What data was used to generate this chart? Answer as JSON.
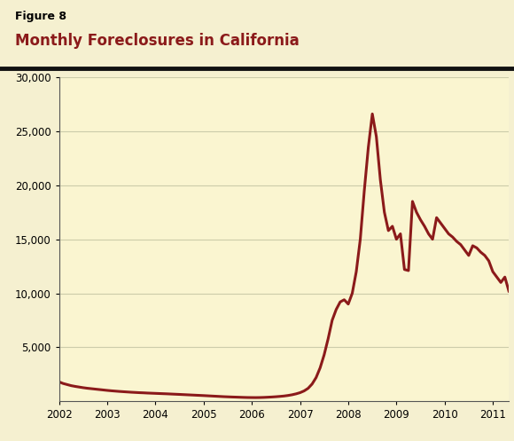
{
  "figure_label": "Figure 8",
  "title": "Monthly Foreclosures in California",
  "title_color": "#8B1A1A",
  "figure_label_color": "#000000",
  "outer_bg": "#F5F0D0",
  "plot_bg": "#FAF5D0",
  "line_color": "#8B1A1A",
  "line_width": 2.2,
  "ylim": [
    0,
    30000
  ],
  "yticks": [
    5000,
    10000,
    15000,
    20000,
    25000,
    30000
  ],
  "grid_color": "#CCCCAA",
  "separator_color": "#111111",
  "x_labels": [
    "2002",
    "2003",
    "2004",
    "2005",
    "2006",
    "2007",
    "2008",
    "2009",
    "2010",
    "2011"
  ],
  "data": [
    1800,
    1650,
    1550,
    1450,
    1380,
    1320,
    1260,
    1210,
    1170,
    1130,
    1090,
    1050,
    1010,
    975,
    945,
    915,
    890,
    865,
    840,
    820,
    800,
    785,
    765,
    750,
    735,
    720,
    705,
    690,
    672,
    655,
    638,
    620,
    602,
    584,
    566,
    548,
    530,
    510,
    490,
    470,
    450,
    430,
    415,
    400,
    388,
    375,
    362,
    352,
    348,
    345,
    350,
    362,
    380,
    400,
    425,
    455,
    490,
    540,
    605,
    690,
    800,
    960,
    1200,
    1600,
    2200,
    3100,
    4300,
    5800,
    7500,
    8500,
    9200,
    9400,
    9000,
    10000,
    12000,
    15000,
    19500,
    23500,
    26600,
    24500,
    20500,
    17500,
    15800,
    16200,
    15000,
    15500,
    12200,
    12100,
    18500,
    17500,
    16800,
    16200,
    15500,
    15000,
    17000,
    16500,
    16000,
    15500,
    15200,
    14800,
    14500,
    14000,
    13500,
    14400,
    14200,
    13800,
    13500,
    13000,
    12000,
    11500,
    11000,
    11500,
    10200
  ]
}
